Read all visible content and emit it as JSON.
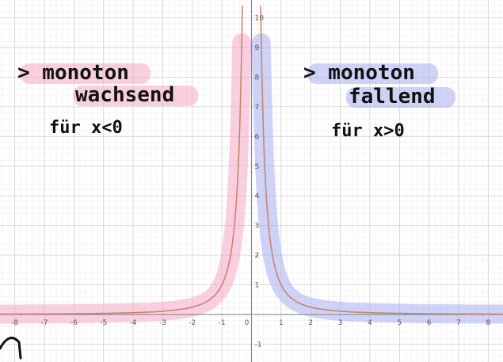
{
  "chart_data": {
    "type": "line",
    "function": "f(x) = 1/x^2",
    "xlim": [
      -8.5,
      8.5
    ],
    "ylim": [
      -1.6,
      10.6
    ],
    "x_ticks": [
      "-8",
      "-7",
      "-6",
      "-5",
      "-4",
      "-3",
      "-2",
      "-1",
      "0",
      "1",
      "2",
      "3",
      "4",
      "5",
      "6",
      "7",
      "8"
    ],
    "y_ticks": [
      "-1",
      "1",
      "2",
      "3",
      "4",
      "5",
      "6",
      "7",
      "8",
      "9",
      "10"
    ],
    "grid": true,
    "series": [
      {
        "branch": "left",
        "x_range": [
          -8.5,
          -0.31
        ],
        "line_color": "#c8856a",
        "highlight_color": "#f6a9c8"
      },
      {
        "branch": "right",
        "x_range": [
          0.31,
          8.5
        ],
        "line_color": "#c8856a",
        "highlight_color": "#a9aef2"
      }
    ],
    "annotations": [
      {
        "id": "left",
        "lines": [
          "> monoton",
          "wachsend"
        ],
        "condition": "für  x<0",
        "highlight_color": "#f6a9c8"
      },
      {
        "id": "right",
        "lines": [
          "> monoton",
          "fallend"
        ],
        "condition": "für  x>0",
        "highlight_color": "#a9aef2"
      }
    ]
  }
}
